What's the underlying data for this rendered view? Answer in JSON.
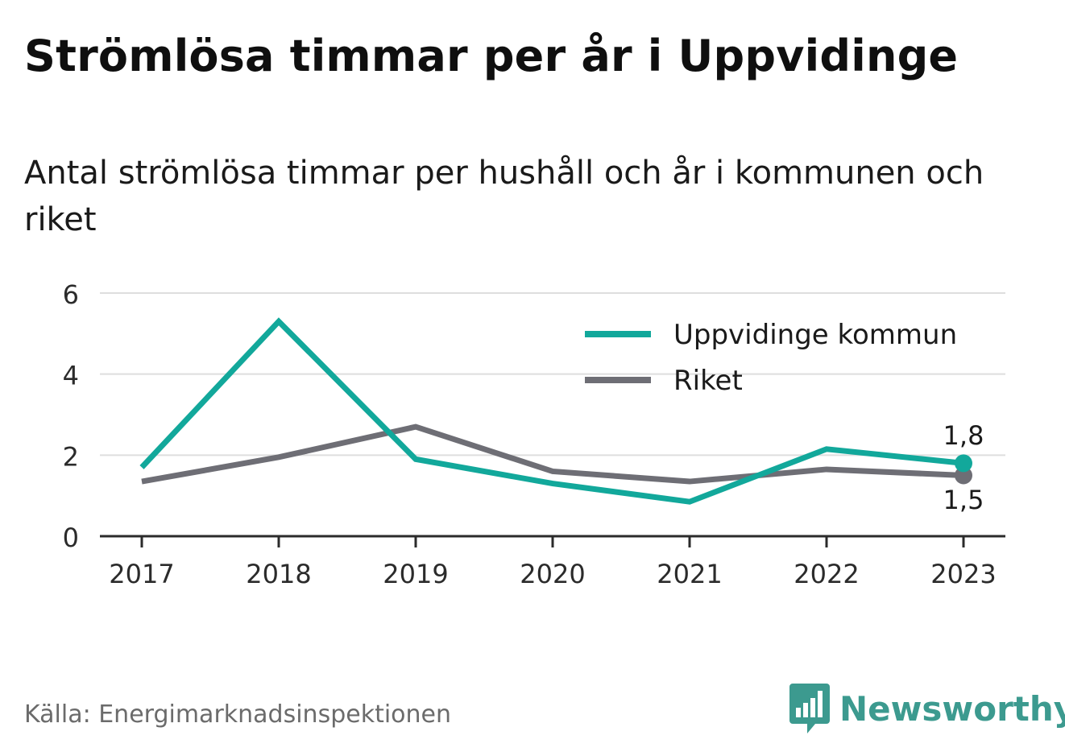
{
  "title": "Strömlösa timmar per år i Uppvidinge",
  "subtitle": "Antal strömlösa timmar per hushåll och år i kommunen och riket",
  "source": "Källa: Energimarknadsinspektionen",
  "brand": {
    "name": "Newsworthy",
    "icon": "newsworthy-logo-icon",
    "color": "#3c9a8f"
  },
  "chart_data": {
    "type": "line",
    "x": [
      "2017",
      "2018",
      "2019",
      "2020",
      "2021",
      "2022",
      "2023"
    ],
    "series": [
      {
        "name": "Uppvidinge kommun",
        "color": "#12a89b",
        "values": [
          1.7,
          5.3,
          1.9,
          1.3,
          0.85,
          2.15,
          1.8
        ]
      },
      {
        "name": "Riket",
        "color": "#6e6e75",
        "values": [
          1.35,
          1.95,
          2.7,
          1.6,
          1.35,
          1.65,
          1.5
        ]
      }
    ],
    "end_labels": [
      "1,8",
      "1,5"
    ],
    "yticks": [
      "0",
      "2",
      "4",
      "6"
    ],
    "ylim": [
      0,
      6
    ],
    "grid": true,
    "legend_position": "top-right"
  }
}
